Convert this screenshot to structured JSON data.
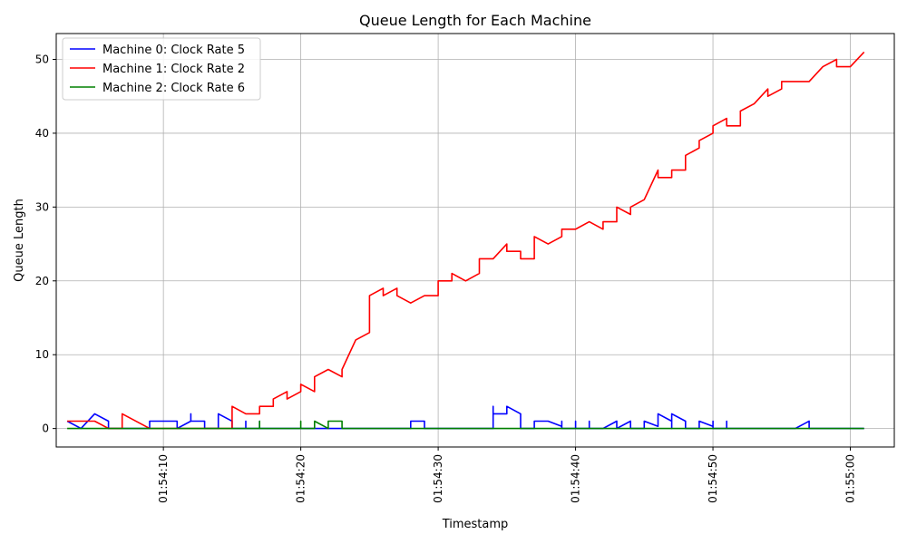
{
  "chart_data": {
    "type": "line",
    "title": "Queue Length for Each Machine",
    "xlabel": "Timestamp",
    "ylabel": "Queue Length",
    "xlim": [
      "01:54:02.2",
      "01:55:03.2"
    ],
    "ylim": [
      -2.5,
      53.5
    ],
    "x_ticks": [
      "01:54:10",
      "01:54:20",
      "01:54:30",
      "01:54:40",
      "01:54:50",
      "01:55:00"
    ],
    "y_ticks": [
      0,
      10,
      20,
      30,
      40,
      50
    ],
    "grid": true,
    "legend_position": "top-left",
    "series": [
      {
        "name": "Machine 0: Clock Rate 5",
        "color": "#0000ff",
        "points": [
          [
            "01:54:03",
            1
          ],
          [
            "01:54:04",
            0
          ],
          [
            "01:54:05",
            2
          ],
          [
            "01:54:06",
            1
          ],
          [
            "01:54:06",
            0
          ],
          [
            "01:54:09",
            0
          ],
          [
            "01:54:09",
            1
          ],
          [
            "01:54:11",
            1
          ],
          [
            "01:54:11",
            0
          ],
          [
            "01:54:12",
            1
          ],
          [
            "01:54:12",
            2
          ],
          [
            "01:54:12",
            1
          ],
          [
            "01:54:13",
            1
          ],
          [
            "01:54:13",
            0
          ],
          [
            "01:54:14",
            0
          ],
          [
            "01:54:14",
            2
          ],
          [
            "01:54:15",
            1
          ],
          [
            "01:54:15",
            0
          ],
          [
            "01:54:16",
            0
          ],
          [
            "01:54:16",
            1
          ],
          [
            "01:54:16",
            0
          ],
          [
            "01:54:17",
            0
          ],
          [
            "01:54:17",
            1
          ],
          [
            "01:54:17",
            0
          ],
          [
            "01:54:28",
            0
          ],
          [
            "01:54:28",
            1
          ],
          [
            "01:54:29",
            1
          ],
          [
            "01:54:29",
            0
          ],
          [
            "01:54:34",
            0
          ],
          [
            "01:54:34",
            3
          ],
          [
            "01:54:34",
            2
          ],
          [
            "01:54:35",
            2
          ],
          [
            "01:54:35",
            3
          ],
          [
            "01:54:36",
            2
          ],
          [
            "01:54:36",
            0
          ],
          [
            "01:54:37",
            0
          ],
          [
            "01:54:37",
            1
          ],
          [
            "01:54:38",
            1
          ],
          [
            "01:54:39",
            0.3
          ],
          [
            "01:54:39",
            1
          ],
          [
            "01:54:39",
            0
          ],
          [
            "01:54:40",
            0
          ],
          [
            "01:54:40",
            1
          ],
          [
            "01:54:40",
            0
          ],
          [
            "01:54:41",
            0
          ],
          [
            "01:54:41",
            1
          ],
          [
            "01:54:41",
            0
          ],
          [
            "01:54:42",
            0
          ],
          [
            "01:54:43",
            1
          ],
          [
            "01:54:43",
            0
          ],
          [
            "01:54:44",
            1
          ],
          [
            "01:54:44",
            0
          ],
          [
            "01:54:45",
            0
          ],
          [
            "01:54:45",
            1
          ],
          [
            "01:54:46",
            0.3
          ],
          [
            "01:54:46",
            2
          ],
          [
            "01:54:47",
            1
          ],
          [
            "01:54:47",
            0
          ],
          [
            "01:54:47",
            2
          ],
          [
            "01:54:48",
            1
          ],
          [
            "01:54:48",
            0
          ],
          [
            "01:54:49",
            0
          ],
          [
            "01:54:49",
            1
          ],
          [
            "01:54:50",
            0.3
          ],
          [
            "01:54:50",
            1
          ],
          [
            "01:54:50",
            0
          ],
          [
            "01:54:51",
            0
          ],
          [
            "01:54:51",
            1
          ],
          [
            "01:54:51",
            0
          ],
          [
            "01:54:56",
            0
          ],
          [
            "01:54:57",
            1
          ],
          [
            "01:54:57",
            0
          ],
          [
            "01:55:01",
            0
          ]
        ]
      },
      {
        "name": "Machine 1: Clock Rate 2",
        "color": "#ff0000",
        "points": [
          [
            "01:54:03",
            1
          ],
          [
            "01:54:05",
            1
          ],
          [
            "01:54:06",
            0
          ],
          [
            "01:54:07",
            0
          ],
          [
            "01:54:07",
            2
          ],
          [
            "01:54:09",
            0
          ],
          [
            "01:54:15",
            0
          ],
          [
            "01:54:15",
            3
          ],
          [
            "01:54:16",
            2
          ],
          [
            "01:54:17",
            2
          ],
          [
            "01:54:17",
            3
          ],
          [
            "01:54:18",
            3
          ],
          [
            "01:54:18",
            4
          ],
          [
            "01:54:19",
            5
          ],
          [
            "01:54:19",
            4
          ],
          [
            "01:54:20",
            5
          ],
          [
            "01:54:20",
            6
          ],
          [
            "01:54:21",
            5
          ],
          [
            "01:54:21",
            7
          ],
          [
            "01:54:22",
            8
          ],
          [
            "01:54:23",
            7
          ],
          [
            "01:54:23",
            8
          ],
          [
            "01:54:24",
            12
          ],
          [
            "01:54:25",
            13
          ],
          [
            "01:54:25",
            18
          ],
          [
            "01:54:26",
            19
          ],
          [
            "01:54:26",
            18
          ],
          [
            "01:54:27",
            19
          ],
          [
            "01:54:27",
            18
          ],
          [
            "01:54:28",
            17
          ],
          [
            "01:54:29",
            18
          ],
          [
            "01:54:30",
            18
          ],
          [
            "01:54:30",
            20
          ],
          [
            "01:54:31",
            20
          ],
          [
            "01:54:31",
            21
          ],
          [
            "01:54:32",
            20
          ],
          [
            "01:54:33",
            21
          ],
          [
            "01:54:33",
            23
          ],
          [
            "01:54:34",
            23
          ],
          [
            "01:54:35",
            25
          ],
          [
            "01:54:35",
            24
          ],
          [
            "01:54:36",
            24
          ],
          [
            "01:54:36",
            23
          ],
          [
            "01:54:37",
            23
          ],
          [
            "01:54:37",
            26
          ],
          [
            "01:54:38",
            25
          ],
          [
            "01:54:39",
            26
          ],
          [
            "01:54:39",
            27
          ],
          [
            "01:54:40",
            27
          ],
          [
            "01:54:41",
            28
          ],
          [
            "01:54:42",
            27
          ],
          [
            "01:54:42",
            28
          ],
          [
            "01:54:43",
            28
          ],
          [
            "01:54:43",
            30
          ],
          [
            "01:54:44",
            29
          ],
          [
            "01:54:44",
            30
          ],
          [
            "01:54:45",
            31
          ],
          [
            "01:54:46",
            35
          ],
          [
            "01:54:46",
            34
          ],
          [
            "01:54:47",
            34
          ],
          [
            "01:54:47",
            35
          ],
          [
            "01:54:48",
            35
          ],
          [
            "01:54:48",
            37
          ],
          [
            "01:54:49",
            38
          ],
          [
            "01:54:49",
            39
          ],
          [
            "01:54:50",
            40
          ],
          [
            "01:54:50",
            41
          ],
          [
            "01:54:51",
            42
          ],
          [
            "01:54:51",
            41
          ],
          [
            "01:54:52",
            41
          ],
          [
            "01:54:52",
            43
          ],
          [
            "01:54:53",
            44
          ],
          [
            "01:54:54",
            46
          ],
          [
            "01:54:54",
            45
          ],
          [
            "01:54:55",
            46
          ],
          [
            "01:54:55",
            47
          ],
          [
            "01:54:57",
            47
          ],
          [
            "01:54:58",
            49
          ],
          [
            "01:54:59",
            50
          ],
          [
            "01:54:59",
            49
          ],
          [
            "01:55:00",
            49
          ],
          [
            "01:55:01",
            51
          ]
        ]
      },
      {
        "name": "Machine 2: Clock Rate 6",
        "color": "#008000",
        "points": [
          [
            "01:54:03",
            0
          ],
          [
            "01:54:17",
            0
          ],
          [
            "01:54:17",
            1
          ],
          [
            "01:54:17",
            0
          ],
          [
            "01:54:20",
            0
          ],
          [
            "01:54:20",
            1
          ],
          [
            "01:54:20",
            0
          ],
          [
            "01:54:21",
            0
          ],
          [
            "01:54:21",
            1
          ],
          [
            "01:54:22",
            0
          ],
          [
            "01:54:22",
            1
          ],
          [
            "01:54:23",
            1
          ],
          [
            "01:54:23",
            0
          ],
          [
            "01:55:01",
            0
          ]
        ]
      }
    ]
  }
}
